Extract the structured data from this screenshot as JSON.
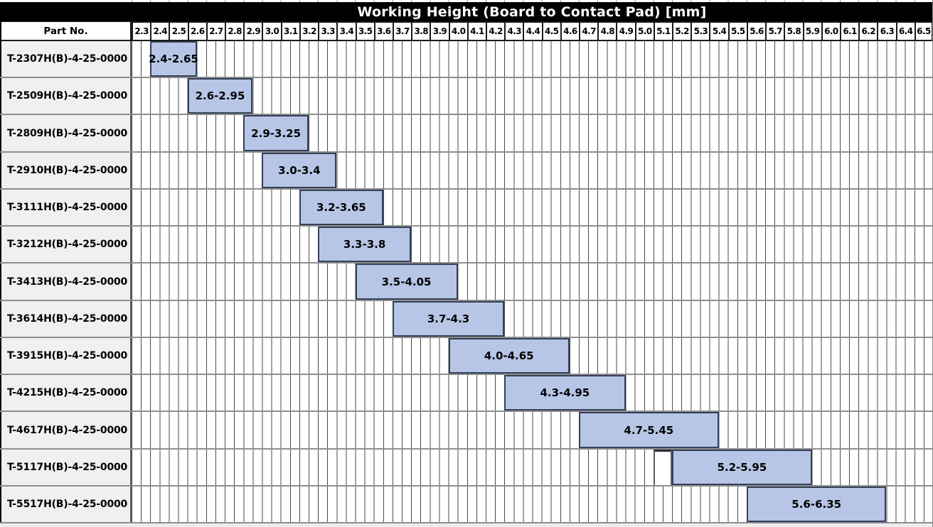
{
  "colors": {
    "title_bg": "#000000",
    "title_text": "#ffffff",
    "bar_fill": "#b7c6e6",
    "bar_border": "#334059",
    "row_label_bg": "#f0f0f0",
    "minor_grid_line": "#4a4a4a",
    "row_separator": "#8e8e8e",
    "header_cell_border": "#1a1a1a"
  },
  "chart_data": {
    "type": "bar",
    "subtype": "horizontal-range (gantt-style part selection table)",
    "title": "Working Height (Board to Contact Pad) [mm]",
    "row_header": "Part No.",
    "xlabel": "",
    "ylabel": "",
    "x_range": [
      2.3,
      6.6
    ],
    "major_tick_step": 0.1,
    "minor_grid_step": 0.05,
    "grid": "vertical minor gridlines every 0.05 mm, horizontal row separators",
    "legend_position": "none",
    "x_tick_labels": [
      "2.3",
      "2.4",
      "2.5",
      "2.6",
      "2.7",
      "2.8",
      "2.9",
      "3.0",
      "3.1",
      "3.2",
      "3.3",
      "3.4",
      "3.5",
      "3.6",
      "3.7",
      "3.8",
      "3.9",
      "4.0",
      "4.1",
      "4.2",
      "4.3",
      "4.4",
      "4.5",
      "4.6",
      "4.7",
      "4.8",
      "4.9",
      "5.0",
      "5.1",
      "5.2",
      "5.3",
      "5.4",
      "5.5",
      "5.6",
      "5.7",
      "5.8",
      "5.9",
      "6.0",
      "6.1",
      "6.2",
      "6.3",
      "6.4",
      "6.5"
    ],
    "rows": [
      {
        "part_no": "T-2307H(B)-4-25-0000",
        "range_label": "2.4-2.65",
        "start": 2.4,
        "end": 2.65
      },
      {
        "part_no": "T-2509H(B)-4-25-0000",
        "range_label": "2.6-2.95",
        "start": 2.6,
        "end": 2.95
      },
      {
        "part_no": "T-2809H(B)-4-25-0000",
        "range_label": "2.9-3.25",
        "start": 2.9,
        "end": 3.25
      },
      {
        "part_no": "T-2910H(B)-4-25-0000",
        "range_label": "3.0-3.4",
        "start": 3.0,
        "end": 3.4
      },
      {
        "part_no": "T-3111H(B)-4-25-0000",
        "range_label": "3.2-3.65",
        "start": 3.2,
        "end": 3.65
      },
      {
        "part_no": "T-3212H(B)-4-25-0000",
        "range_label": "3.3-3.8",
        "start": 3.3,
        "end": 3.8
      },
      {
        "part_no": "T-3413H(B)-4-25-0000",
        "range_label": "3.5-4.05",
        "start": 3.5,
        "end": 4.05
      },
      {
        "part_no": "T-3614H(B)-4-25-0000",
        "range_label": "3.7-4.3",
        "start": 3.7,
        "end": 4.3
      },
      {
        "part_no": "T-3915H(B)-4-25-0000",
        "range_label": "4.0-4.65",
        "start": 4.0,
        "end": 4.65
      },
      {
        "part_no": "T-4215H(B)-4-25-0000",
        "range_label": "4.3-4.95",
        "start": 4.3,
        "end": 4.95
      },
      {
        "part_no": "T-4617H(B)-4-25-0000",
        "range_label": "4.7-5.45",
        "start": 4.7,
        "end": 5.45
      },
      {
        "part_no": "T-5117H(B)-4-25-0000",
        "range_label": "5.2-5.95",
        "start": 5.2,
        "end": 5.95
      },
      {
        "part_no": "T-5517H(B)-4-25-0000",
        "range_label": "5.6-6.35",
        "start": 5.6,
        "end": 6.35
      }
    ],
    "artifacts": {
      "empty_outlined_cell": {
        "row_index": 11,
        "start": 5.1,
        "end": 5.2
      }
    }
  }
}
